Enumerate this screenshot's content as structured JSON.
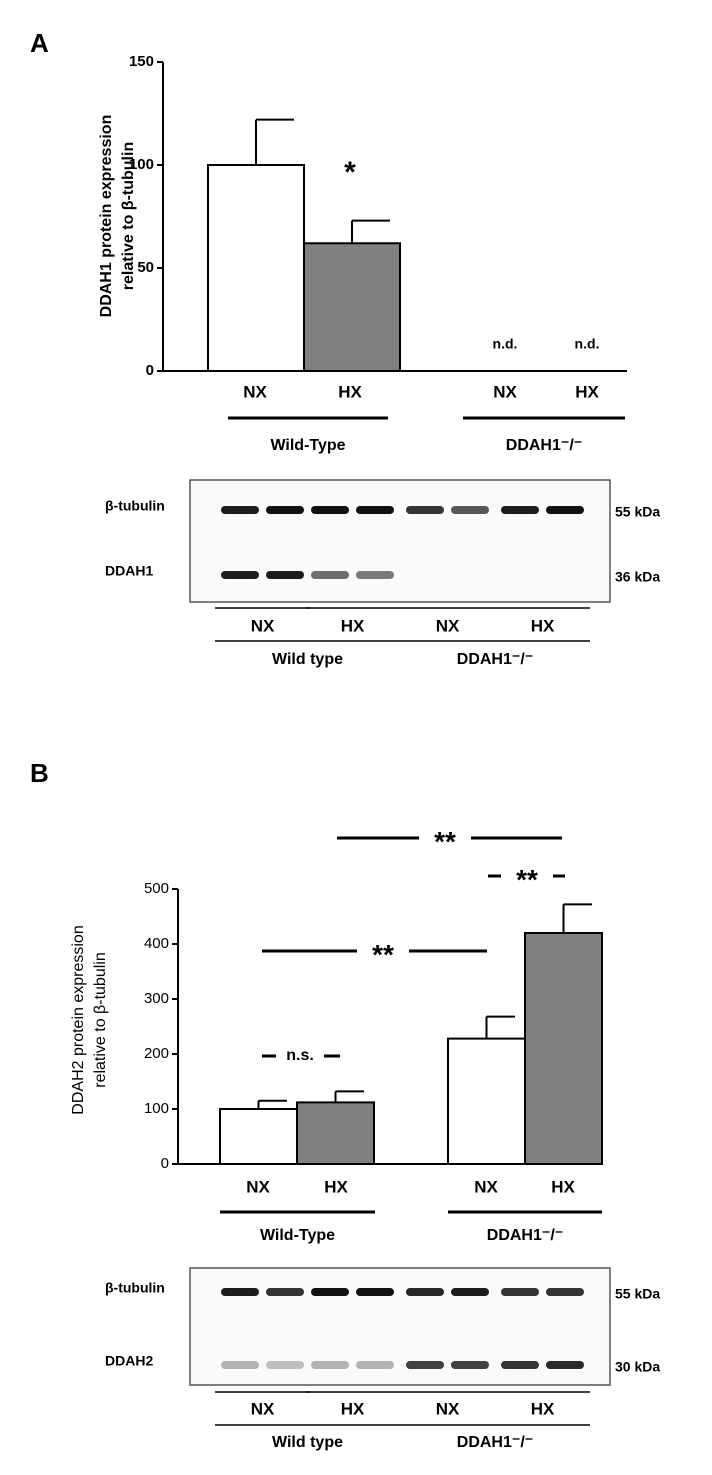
{
  "chart_data": [
    {
      "type": "bar",
      "panel": "A",
      "y_label": [
        "DDAH1 protein expression",
        "relative to β-tubulin"
      ],
      "categories": [
        "NX",
        "HX",
        "NX",
        "HX"
      ],
      "values": [
        100,
        62,
        null,
        null
      ],
      "errors": [
        22,
        11,
        null,
        null
      ],
      "value_labels": [
        null,
        null,
        "n.d.",
        "n.d."
      ],
      "colors": [
        "#ffffff",
        "#808080",
        "#ffffff",
        "#808080"
      ],
      "groups": [
        "Wild-Type",
        "DDAH1⁻/⁻"
      ],
      "ylim": [
        0,
        150
      ],
      "yticks": [
        0,
        50,
        100,
        150
      ],
      "annotations": [
        "*"
      ],
      "blot": {
        "rows": [
          {
            "label": "β-tubulin",
            "size": "55 kDa"
          },
          {
            "label": "DDAH1",
            "size": "36 kDa"
          }
        ],
        "lanes": [
          "NX",
          "HX",
          "NX",
          "HX"
        ],
        "groups": [
          "Wild type",
          "DDAH1⁻/⁻"
        ]
      }
    },
    {
      "type": "bar",
      "panel": "B",
      "y_label": [
        "DDAH2 protein expression",
        "relative to β-tubulin"
      ],
      "categories": [
        "NX",
        "HX",
        "NX",
        "HX"
      ],
      "values": [
        100,
        112,
        228,
        420
      ],
      "errors": [
        15,
        20,
        40,
        52
      ],
      "colors": [
        "#ffffff",
        "#808080",
        "#ffffff",
        "#808080"
      ],
      "groups": [
        "Wild-Type",
        "DDAH1⁻/⁻"
      ],
      "ylim": [
        0,
        500
      ],
      "yticks": [
        0,
        100,
        200,
        300,
        400,
        500
      ],
      "annotations": [
        "**",
        "**",
        "**",
        "n.s."
      ],
      "blot": {
        "rows": [
          {
            "label": "β-tubulin",
            "size": "55 kDa"
          },
          {
            "label": "DDAH2",
            "size": "30 kDa"
          }
        ],
        "lanes": [
          "NX",
          "HX",
          "NX",
          "HX"
        ],
        "groups": [
          "Wild type",
          "DDAH1⁻/⁻"
        ]
      }
    }
  ]
}
